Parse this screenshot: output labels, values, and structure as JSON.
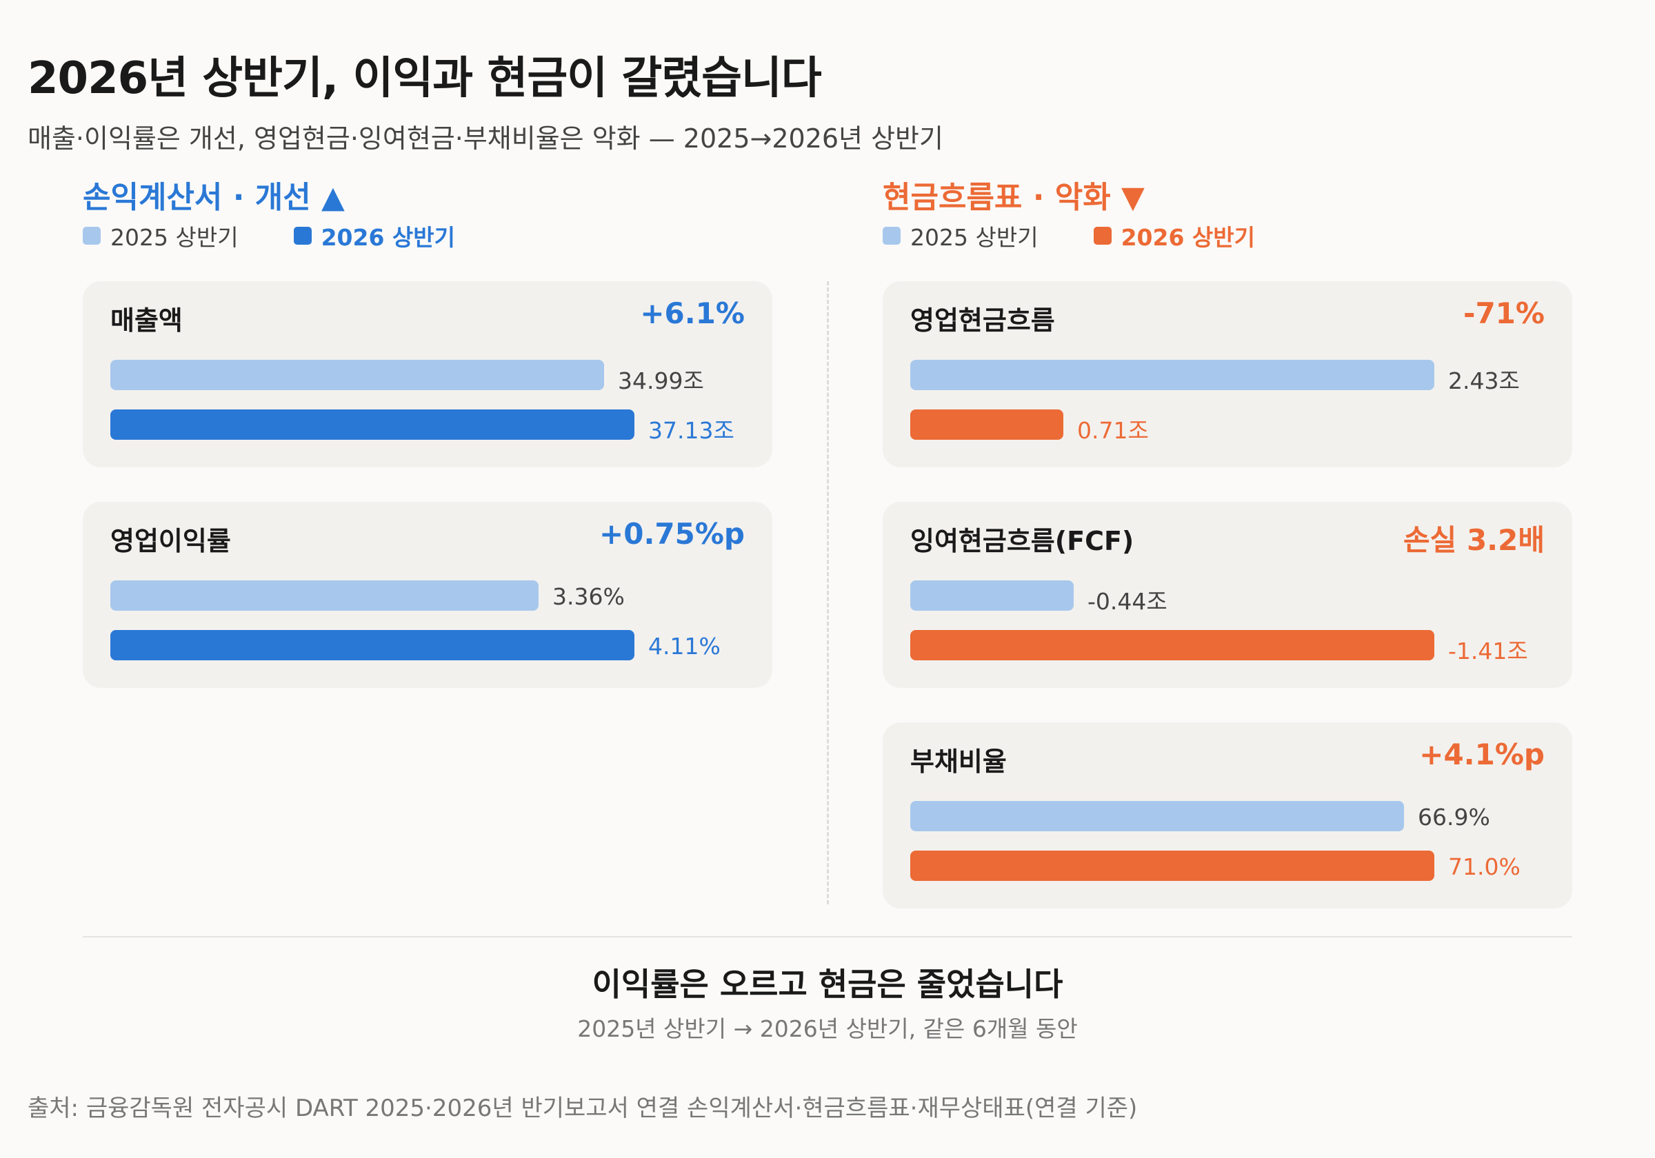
{
  "title": "2026년 상반기, 이익과 현금이 갈렸습니다",
  "subtitle": "매출·이익률은 개선, 영업현금·잉여현금·부채비율은 악화 — 2025→2026년 상반기",
  "colors": {
    "improve": "#2a78d6",
    "worsen": "#ec6a35",
    "prev": "#a7c8ec"
  },
  "panels": {
    "left": {
      "heading": "손익계산서 · 개선 ▲",
      "legend_prev": "2025 상반기",
      "legend_cur": "2026 상반기"
    },
    "right": {
      "heading": "현금흐름표 · 악화 ▼",
      "legend_prev": "2025 상반기",
      "legend_cur": "2026 상반기"
    }
  },
  "cards": {
    "revenue": {
      "name": "매출액",
      "delta": "+6.1%",
      "prev_label": "34.99조",
      "cur_label": "37.13조"
    },
    "op_margin": {
      "name": "영업이익률",
      "delta": "+0.75%p",
      "prev_label": "3.36%",
      "cur_label": "4.11%"
    },
    "ocf": {
      "name": "영업현금흐름",
      "delta": "-71%",
      "prev_label": "2.43조",
      "cur_label": "0.71조"
    },
    "fcf": {
      "name": "잉여현금흐름(FCF)",
      "delta": "손실 3.2배",
      "prev_label": "-0.44조",
      "cur_label": "-1.41조"
    },
    "debt": {
      "name": "부채비율",
      "delta": "+4.1%p",
      "prev_label": "66.9%",
      "cur_label": "71.0%"
    }
  },
  "chart_data": {
    "type": "bar",
    "series_names": [
      "2025 상반기",
      "2026 상반기"
    ],
    "groups": [
      {
        "key": "revenue",
        "category": "매출액",
        "unit": "조",
        "values": [
          34.99,
          37.13
        ],
        "change": "+6.1%",
        "direction": "improve"
      },
      {
        "key": "op_margin",
        "category": "영업이익률",
        "unit": "%",
        "values": [
          3.36,
          4.11
        ],
        "change": "+0.75%p",
        "direction": "improve"
      },
      {
        "key": "ocf",
        "category": "영업현금흐름",
        "unit": "조",
        "values": [
          2.43,
          0.71
        ],
        "change": "-71%",
        "direction": "worsen"
      },
      {
        "key": "fcf",
        "category": "잉여현금흐름(FCF)",
        "unit": "조",
        "values": [
          -0.44,
          -1.41
        ],
        "change": "손실 3.2배",
        "direction": "worsen"
      },
      {
        "key": "debt",
        "category": "부채비율",
        "unit": "%",
        "values": [
          66.9,
          71.0
        ],
        "change": "+4.1%p",
        "direction": "worsen"
      }
    ]
  },
  "conclusion": {
    "headline": "이익률은 오르고 현금은 줄었습니다",
    "sub": "2025년 상반기 → 2026년 상반기, 같은 6개월 동안"
  },
  "source": "출처: 금융감독원 전자공시 DART 2025·2026년 반기보고서 연결 손익계산서·현금흐름표·재무상태표(연결 기준)"
}
